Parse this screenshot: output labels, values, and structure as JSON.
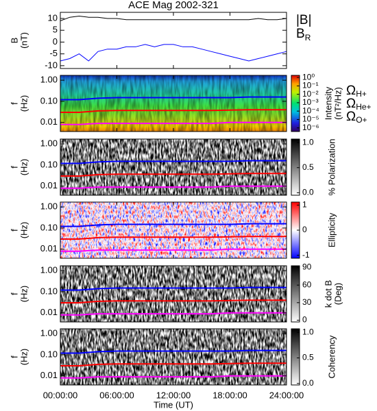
{
  "chart_data": [
    {
      "type": "line",
      "title": "ACE Mag 2002-321",
      "ylabel": [
        "B",
        "(nT)"
      ],
      "x": [
        0,
        1,
        2,
        3,
        4,
        5,
        6,
        7,
        8,
        9,
        10,
        11,
        12,
        13,
        14,
        15,
        16,
        17,
        18,
        19,
        20,
        21,
        22,
        23,
        24
      ],
      "xlim": [
        0,
        24
      ],
      "ylim": [
        -11.2,
        12.6
      ],
      "yticks": [
        10,
        5,
        0,
        -5,
        -10
      ],
      "series": [
        {
          "name": "|B|",
          "color": "#000000",
          "values": [
            9,
            10.5,
            11,
            10.5,
            10.5,
            10,
            10,
            9.5,
            9.5,
            9.5,
            9.5,
            9.5,
            9.5,
            9.5,
            9.5,
            9.5,
            9.5,
            9.5,
            9.5,
            9.5,
            9.5,
            10,
            9.5,
            9.5,
            10
          ]
        },
        {
          "name": "B",
          "subscript": "R",
          "color": "#0000ff",
          "values": [
            -8,
            -7,
            -5,
            -8,
            -4,
            -3,
            -3,
            -2,
            -2,
            -1,
            -2,
            -1,
            -1,
            -2,
            -2,
            -3,
            -4,
            -5,
            -6,
            -7,
            -8,
            -7,
            -6,
            -5,
            -4
          ]
        }
      ]
    },
    {
      "type": "spectrogram",
      "ylabel": [
        "f",
        "(Hz)"
      ],
      "log": true,
      "xlim": [
        0,
        24
      ],
      "ylim": [
        0.0037,
        1.7
      ],
      "yticks": [
        {
          "value": 1,
          "label": "1.00"
        },
        {
          "value": 0.1,
          "label": "0.10"
        },
        {
          "value": 0.01,
          "label": "0.01"
        }
      ],
      "x": [
        0,
        2,
        4,
        6,
        8,
        10,
        12,
        14,
        16,
        18,
        20,
        22,
        24
      ],
      "series": [
        {
          "name": "Ω",
          "subscript": "H+",
          "color": "#0000ff",
          "values": [
            0.12,
            0.12,
            0.14,
            0.15,
            0.15,
            0.15,
            0.15,
            0.15,
            0.15,
            0.15,
            0.16,
            0.16,
            0.16
          ]
        },
        {
          "name": "Ω",
          "subscript": "He+",
          "color": "#ff0000",
          "values": [
            0.03,
            0.03,
            0.035,
            0.037,
            0.037,
            0.037,
            0.037,
            0.037,
            0.037,
            0.038,
            0.04,
            0.04,
            0.04
          ]
        },
        {
          "name": "Ω",
          "subscript": "O+",
          "color": "#ff00ff",
          "values": [
            0.008,
            0.008,
            0.009,
            0.009,
            0.009,
            0.009,
            0.009,
            0.009,
            0.009,
            0.01,
            0.01,
            0.01,
            0.01
          ]
        }
      ],
      "colorbar": {
        "label": [
          "Intensity",
          "(nT²/Hz)"
        ],
        "colormap": "rainbow",
        "log": true,
        "lim": [
          3.7e-07,
          1.8
        ],
        "ticks": [
          {
            "value": 1,
            "label": "10⁰"
          },
          {
            "value": 0.1,
            "label": "10⁻¹"
          },
          {
            "value": 0.01,
            "label": "10⁻²"
          },
          {
            "value": 0.001,
            "label": "10⁻³"
          },
          {
            "value": 0.0001,
            "label": "10⁻⁴"
          },
          {
            "value": 1e-05,
            "label": "10⁻⁵"
          },
          {
            "value": 1e-06,
            "label": "10⁻⁶"
          }
        ]
      }
    },
    {
      "type": "spectrogram",
      "ylabel": [
        "f",
        "(Hz)"
      ],
      "log": true,
      "xlim": [
        0,
        24
      ],
      "ylim": [
        0.0037,
        1.7
      ],
      "yticks": [
        {
          "value": 1,
          "label": "1.00"
        },
        {
          "value": 0.1,
          "label": "0.10"
        },
        {
          "value": 0.01,
          "label": "0.01"
        }
      ],
      "colorbar": {
        "label": [
          "% Polarization"
        ],
        "colormap": "gray",
        "lim": [
          -0.05,
          1.07
        ],
        "ticks": [
          {
            "value": 1,
            "label": "1.0"
          },
          {
            "value": 0.5,
            "label": "0.5"
          },
          {
            "value": 0,
            "label": "0.0"
          }
        ]
      }
    },
    {
      "type": "spectrogram",
      "ylabel": [
        "f",
        "(Hz)"
      ],
      "log": true,
      "xlim": [
        0,
        24
      ],
      "ylim": [
        0.0037,
        1.7
      ],
      "yticks": [
        {
          "value": 1,
          "label": "1.00"
        },
        {
          "value": 0.1,
          "label": "0.10"
        },
        {
          "value": 0.01,
          "label": "0.01"
        }
      ],
      "colorbar": {
        "label": [
          "Ellipticity"
        ],
        "colormap": "bwr",
        "lim": [
          -1.12,
          1.12
        ],
        "ticks": [
          1,
          0,
          -1
        ]
      }
    },
    {
      "type": "spectrogram",
      "ylabel": [
        "f",
        "(Hz)"
      ],
      "log": true,
      "xlim": [
        0,
        24
      ],
      "ylim": [
        0.0037,
        1.7
      ],
      "yticks": [
        {
          "value": 1,
          "label": "1.00"
        },
        {
          "value": 0.1,
          "label": "0.10"
        },
        {
          "value": 0.01,
          "label": "0.01"
        }
      ],
      "colorbar": {
        "label": [
          "k dot B",
          "(Deg)"
        ],
        "colormap": "gray",
        "lim": [
          -3,
          93
        ],
        "ticks": [
          90,
          60,
          30,
          0
        ]
      }
    },
    {
      "type": "spectrogram",
      "ylabel": [
        "f",
        "(Hz)"
      ],
      "log": true,
      "xlim": [
        0,
        24
      ],
      "ylim": [
        0.0037,
        1.7
      ],
      "yticks": [
        {
          "value": 1,
          "label": "1.00"
        },
        {
          "value": 0.1,
          "label": "0.10"
        },
        {
          "value": 0.01,
          "label": "0.01"
        }
      ],
      "xlabel": "Time (UT)",
      "xticks": [
        {
          "value": 0,
          "label": "00:00:00"
        },
        {
          "value": 6,
          "label": "06:00:00"
        },
        {
          "value": 12,
          "label": "12:00:00"
        },
        {
          "value": 18,
          "label": "18:00:00"
        },
        {
          "value": 24,
          "label": "24:00:00"
        }
      ],
      "colorbar": {
        "label": [
          "Coherency"
        ],
        "colormap": "gray",
        "lim": [
          -0.03,
          1.07
        ],
        "ticks": [
          {
            "value": 1,
            "label": "1.0"
          },
          {
            "value": 0.5,
            "label": "0.5"
          },
          {
            "value": 0,
            "label": "0.0"
          }
        ]
      }
    }
  ]
}
